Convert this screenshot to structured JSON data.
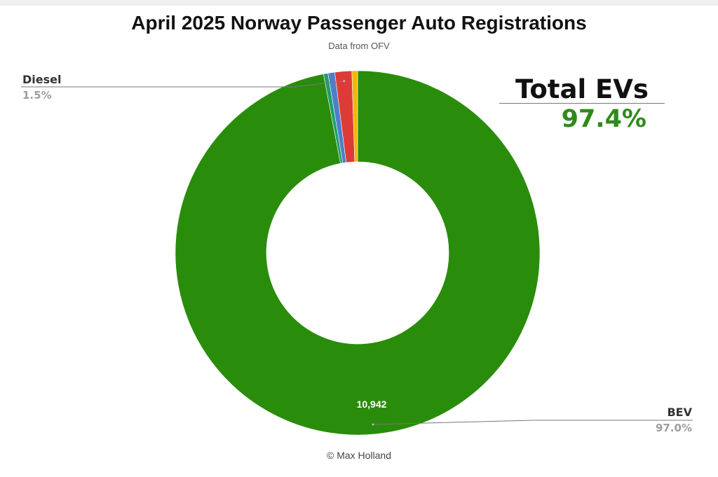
{
  "chart_data": {
    "type": "pie",
    "style": "donut",
    "title": "April 2025 Norway Passenger Auto Registrations",
    "subtitle": "Data from OFV",
    "slices": [
      {
        "name": "BEV",
        "percent": 97.0,
        "value_label": "10,942",
        "pct_label": "97.0%",
        "color": "#2a8c0b",
        "labeled": true
      },
      {
        "name": "",
        "percent": 0.4,
        "value_label": "",
        "pct_label": "",
        "color": "#1e9e6e",
        "labeled": false
      },
      {
        "name": "",
        "percent": 0.6,
        "value_label": "",
        "pct_label": "",
        "color": "#4f7ec9",
        "labeled": false
      },
      {
        "name": "Diesel",
        "percent": 1.5,
        "value_label": "",
        "pct_label": "1.5%",
        "color": "#dd3c36",
        "labeled": true
      },
      {
        "name": "",
        "percent": 0.5,
        "value_label": "",
        "pct_label": "",
        "color": "#f2b705",
        "labeled": false
      }
    ],
    "annotation": {
      "label": "Total EVs",
      "value": "97.4%"
    },
    "credit": "© Max Holland"
  }
}
